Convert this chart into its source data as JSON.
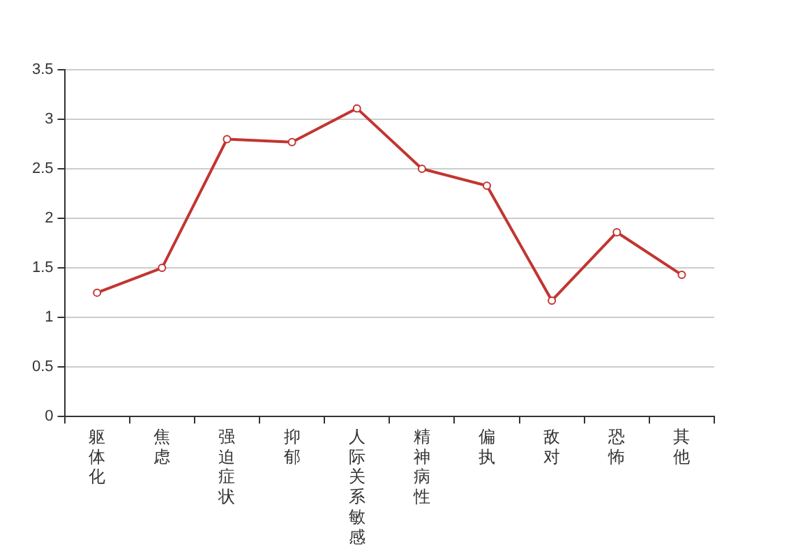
{
  "chart_data": {
    "type": "line",
    "categories": [
      "躯体化",
      "焦虑",
      "强迫症状",
      "抑郁",
      "人际关系敏感",
      "精神病性",
      "偏执",
      "敌对",
      "恐怖",
      "其他"
    ],
    "series": [
      {
        "color": "#c23531",
        "values": [
          1.25,
          1.5,
          2.8,
          2.77,
          3.11,
          2.5,
          2.33,
          1.17,
          1.86,
          1.43
        ]
      }
    ],
    "ylim": [
      0,
      3.5
    ],
    "yticks": [
      0,
      0.5,
      1,
      1.5,
      2,
      2.5,
      3,
      3.5
    ],
    "grid": "y",
    "marker": "circle",
    "line_style": "solid",
    "legend": false
  }
}
